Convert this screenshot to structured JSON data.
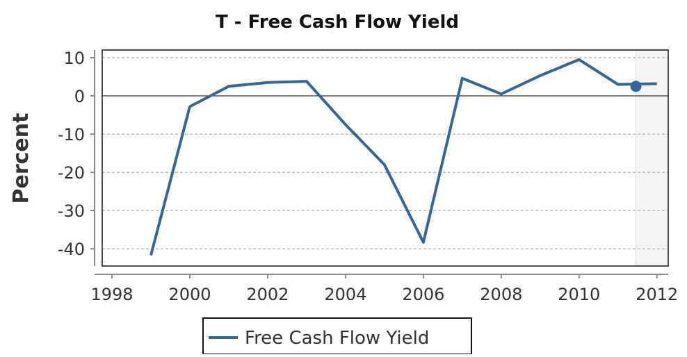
{
  "chart_data": {
    "type": "line",
    "title": "T - Free Cash Flow Yield",
    "y_label": "Percent",
    "x": [
      1999,
      2000,
      2001,
      2002,
      2003,
      2004,
      2005,
      2006,
      2007,
      2008,
      2009,
      2010,
      2011,
      2012
    ],
    "series": [
      {
        "name": "Free Cash Flow Yield",
        "color": "#336699",
        "values": [
          -41.7,
          -2.8,
          2.5,
          3.5,
          3.8,
          -7.5,
          -18,
          -38.3,
          4.6,
          0.5,
          5.3,
          9.5,
          3.0,
          3.2
        ]
      }
    ],
    "highlight": {
      "x": 2011.46,
      "y": 2.5
    },
    "xlim": [
      1997.75,
      2012.29
    ],
    "xticks": [
      1998,
      2000,
      2002,
      2004,
      2006,
      2008,
      2010,
      2012
    ],
    "ylim": [
      -44.5,
      12
    ],
    "yticks": [
      10,
      0,
      -10,
      -20,
      -30,
      -40
    ],
    "grid": true
  }
}
